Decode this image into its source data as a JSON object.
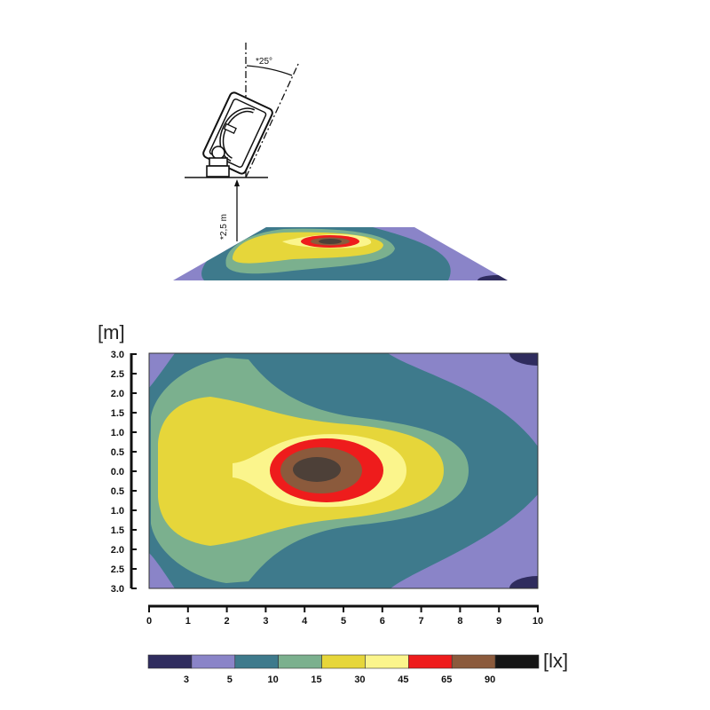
{
  "colors": {
    "levels": [
      "#2f2c5e",
      "#8a84c8",
      "#3e7a8c",
      "#7bb08e",
      "#e6d63a",
      "#fbf58c",
      "#ee1c1c",
      "#8b5a3c",
      "#151515"
    ],
    "center": "#4d4038",
    "axis": "#111111"
  },
  "illustration": {
    "angle_label": "*25°",
    "height_label": "*2,5 m"
  },
  "chart_data": {
    "type": "heatmap",
    "subtype": "isolux contour",
    "y_unit": "[m]",
    "x_ticks": [
      "0",
      "1",
      "2",
      "3",
      "4",
      "5",
      "6",
      "7",
      "8",
      "9",
      "10"
    ],
    "y_ticks": [
      "3.0",
      "2.5",
      "2.0",
      "1.5",
      "1.0",
      "0.5",
      "0.0",
      "0.5",
      "1.0",
      "1.5",
      "2.0",
      "2.5",
      "3.0"
    ],
    "xlim": [
      0,
      10
    ],
    "ylim": [
      -3,
      3
    ],
    "legend": {
      "unit": "[lx]",
      "thresholds": [
        "3",
        "5",
        "10",
        "15",
        "30",
        "45",
        "65",
        "90"
      ],
      "placement": "bottom"
    },
    "peak_location": {
      "x": 4.4,
      "y": 0.0
    },
    "grid": false
  }
}
